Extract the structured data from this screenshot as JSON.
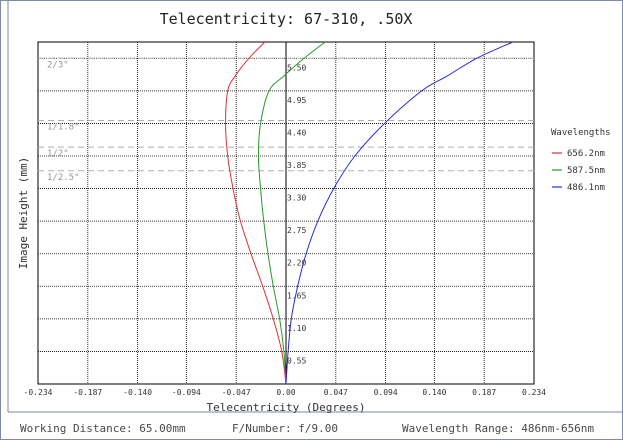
{
  "chart_data": {
    "type": "line",
    "title": "Telecentricity: 67-310, .50X",
    "xlabel": "Telecentricity (Degrees)",
    "ylabel": "Image Height (mm)",
    "xlim": [
      -0.234,
      0.234
    ],
    "ylim": [
      0,
      5.775
    ],
    "x_ticks": [
      "-0.234",
      "-0.187",
      "-0.140",
      "-0.094",
      "-0.047",
      "0.00",
      "0.047",
      "0.094",
      "0.140",
      "0.187",
      "0.234"
    ],
    "y_ticks": [
      "0.55",
      "1.10",
      "1.65",
      "2.20",
      "2.75",
      "3.30",
      "3.85",
      "4.40",
      "4.95",
      "5.50"
    ],
    "grid": true,
    "legend_title": "Wavelengths",
    "legend_position": "right",
    "sensor_formats": [
      {
        "label": "2/3\"",
        "height": 5.5
      },
      {
        "label": "1/1.8\"",
        "height": 4.45
      },
      {
        "label": "1/2\"",
        "height": 4.0
      },
      {
        "label": "1/2.5\"",
        "height": 3.6
      }
    ],
    "series": [
      {
        "name": "656.2nm",
        "color": "#e03030",
        "x": [
          0.0,
          -0.004,
          -0.012,
          -0.022,
          -0.033,
          -0.043,
          -0.05,
          -0.055,
          -0.057,
          -0.055,
          -0.048,
          -0.035,
          -0.02
        ],
        "y": [
          0.0,
          0.55,
          1.1,
          1.65,
          2.2,
          2.75,
          3.3,
          3.85,
          4.4,
          4.95,
          5.2,
          5.5,
          5.775
        ]
      },
      {
        "name": "587.5nm",
        "color": "#2a9a2a",
        "x": [
          0.0,
          -0.002,
          -0.006,
          -0.012,
          -0.017,
          -0.021,
          -0.024,
          -0.026,
          -0.024,
          -0.016,
          -0.002,
          0.017,
          0.037
        ],
        "y": [
          0.0,
          0.55,
          1.1,
          1.65,
          2.2,
          2.75,
          3.3,
          3.85,
          4.4,
          4.95,
          5.2,
          5.5,
          5.775
        ]
      },
      {
        "name": "486.1nm",
        "color": "#2a2ad8",
        "x": [
          0.0,
          0.002,
          0.005,
          0.011,
          0.019,
          0.03,
          0.045,
          0.065,
          0.093,
          0.128,
          0.152,
          0.18,
          0.214
        ],
        "y": [
          0.0,
          0.55,
          1.1,
          1.65,
          2.2,
          2.75,
          3.3,
          3.85,
          4.4,
          4.95,
          5.2,
          5.5,
          5.775
        ]
      }
    ]
  },
  "footer": {
    "working_distance": "Working Distance: 65.00mm",
    "f_number": "F/Number: f/9.00",
    "wavelength_range": "Wavelength Range: 486nm-656nm"
  },
  "colors": {
    "grid": "#000000",
    "sensor_lines": "#b0b0b0",
    "frame": "#7a8aa8"
  }
}
